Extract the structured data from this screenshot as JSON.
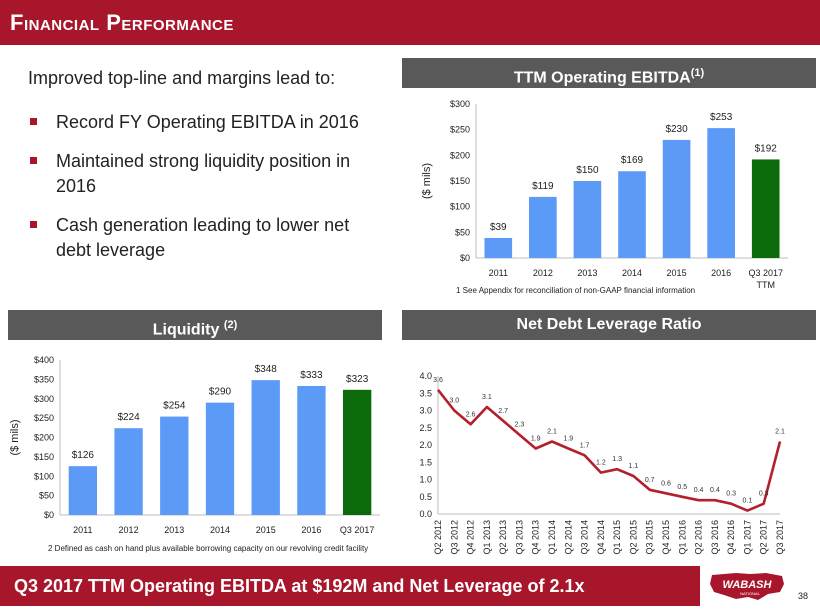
{
  "title": "Financial Performance",
  "intro": "Improved top-line and margins lead to:",
  "bullets": [
    "Record FY Operating EBITDA in 2016",
    "Maintained strong liquidity position in 2016",
    "Cash generation leading to lower net debt leverage"
  ],
  "panels": {
    "ebitda_title": "TTM Operating EBITDA",
    "ebitda_note_ref": "(1)",
    "ebitda_footnote": "1  See Appendix for reconciliation of non-GAAP financial information",
    "liquidity_title": "Liquidity",
    "liquidity_note_ref": "(2)",
    "liquidity_footnote": "2  Defined as cash on hand plus available borrowing capacity on our revolving credit facility",
    "leverage_title": "Net Debt Leverage Ratio"
  },
  "bottom_banner": "Q3 2017 TTM Operating EBITDA at $192M and Net Leverage of 2.1x",
  "logo_text": "WABASH",
  "logo_subtext": "NATIONAL",
  "page_number": "38",
  "colors": {
    "brand_red": "#a8162c",
    "bar_blue": "#5b9bf7",
    "bar_green": "#0b6b0b",
    "banner_gray": "#595959",
    "line_red": "#b51e2b"
  },
  "chart_data": [
    {
      "type": "bar",
      "title": "TTM Operating EBITDA",
      "ylabel": "($ mils)",
      "categories": [
        "2011",
        "2012",
        "2013",
        "2014",
        "2015",
        "2016",
        "Q3 2017"
      ],
      "category_sublabels": [
        "",
        "",
        "",
        "",
        "",
        "",
        "TTM"
      ],
      "values": [
        39,
        119,
        150,
        169,
        230,
        253,
        192
      ],
      "data_labels": [
        "$39",
        "$119",
        "$150",
        "$169",
        "$230",
        "$253",
        "$192"
      ],
      "yticks": [
        "$0",
        "$50",
        "$100",
        "$150",
        "$200",
        "$250",
        "$300"
      ],
      "ylim": [
        0,
        300
      ],
      "highlight_last": true
    },
    {
      "type": "bar",
      "title": "Liquidity",
      "ylabel": "($ mils)",
      "categories": [
        "2011",
        "2012",
        "2013",
        "2014",
        "2015",
        "2016",
        "Q3 2017"
      ],
      "values": [
        126,
        224,
        254,
        290,
        348,
        333,
        323
      ],
      "data_labels": [
        "$126",
        "$224",
        "$254",
        "$290",
        "$348",
        "$333",
        "$323"
      ],
      "yticks": [
        "$0",
        "$50",
        "$100",
        "$150",
        "$200",
        "$250",
        "$300",
        "$350",
        "$400"
      ],
      "ylim": [
        0,
        400
      ],
      "highlight_last": true
    },
    {
      "type": "line",
      "title": "Net Debt Leverage Ratio",
      "categories": [
        "Q2 2012",
        "Q3 2012",
        "Q4 2012",
        "Q1 2013",
        "Q2 2013",
        "Q3 2013",
        "Q4 2013",
        "Q1 2014",
        "Q2 2014",
        "Q3 2014",
        "Q4 2014",
        "Q1 2015",
        "Q2 2015",
        "Q3 2015",
        "Q4 2015",
        "Q1 2016",
        "Q2 2016",
        "Q3 2016",
        "Q4 2016",
        "Q1 2017",
        "Q2 2017",
        "Q3 2017"
      ],
      "values": [
        3.6,
        3.0,
        2.6,
        3.1,
        2.7,
        2.3,
        1.9,
        2.1,
        1.9,
        1.7,
        1.2,
        1.3,
        1.1,
        0.7,
        0.6,
        0.5,
        0.4,
        0.4,
        0.3,
        0.1,
        0.3,
        2.1
      ],
      "data_labels": [
        "3.6",
        "3.0",
        "2.6",
        "3.1",
        "2.7",
        "2.3",
        "1.9",
        "2.1",
        "1.9",
        "1.7",
        "1.2",
        "1.3",
        "1.1",
        "0.7",
        "0.6",
        "0.5",
        "0.4",
        "0.4",
        "0.3",
        "0.1",
        "0.3",
        "2.1"
      ],
      "yticks": [
        "0.0",
        "0.5",
        "1.0",
        "1.5",
        "2.0",
        "2.5",
        "3.0",
        "3.5",
        "4.0"
      ],
      "ylim": [
        0,
        4.0
      ]
    }
  ]
}
